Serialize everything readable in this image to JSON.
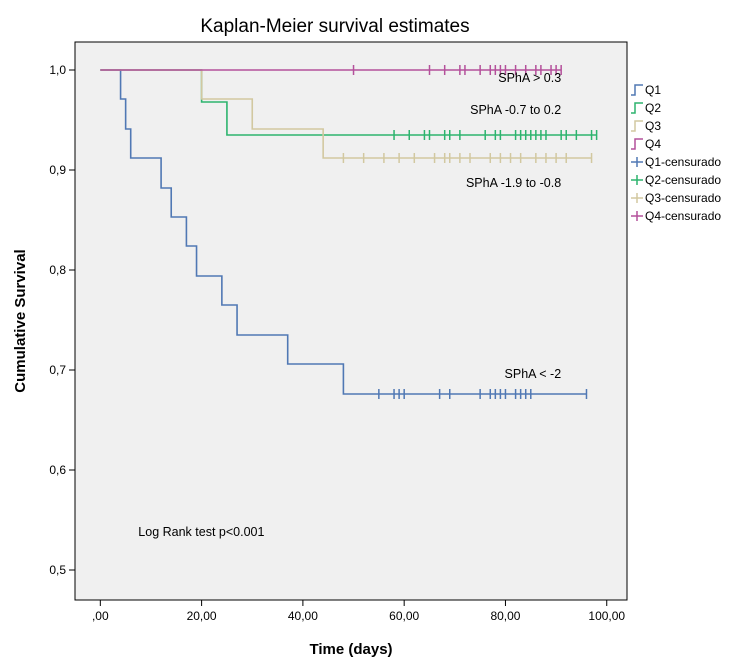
{
  "chart_data": {
    "type": "line",
    "title": "Kaplan-Meier survival estimates",
    "xlabel": "Time (days)",
    "ylabel": "Cumulative Survival",
    "xlim": [
      -5,
      104
    ],
    "ylim": [
      0.47,
      1.028
    ],
    "x_ticks": [
      {
        "value": 0,
        "label": ",00"
      },
      {
        "value": 20,
        "label": "20,00"
      },
      {
        "value": 40,
        "label": "40,00"
      },
      {
        "value": 60,
        "label": "60,00"
      },
      {
        "value": 80,
        "label": "80,00"
      },
      {
        "value": 100,
        "label": "100,00"
      }
    ],
    "y_ticks": [
      {
        "value": 0.5,
        "label": "0,5"
      },
      {
        "value": 0.6,
        "label": "0,6"
      },
      {
        "value": 0.7,
        "label": "0,7"
      },
      {
        "value": 0.8,
        "label": "0,8"
      },
      {
        "value": 0.9,
        "label": "0,9"
      },
      {
        "value": 1.0,
        "label": "1,0"
      }
    ],
    "grid": false,
    "legend_position": "right",
    "legend": [
      {
        "label": "Q1",
        "series": "Q1",
        "kind": "line"
      },
      {
        "label": "Q2",
        "series": "Q2",
        "kind": "line"
      },
      {
        "label": "Q3",
        "series": "Q3",
        "kind": "line"
      },
      {
        "label": "Q4",
        "series": "Q4",
        "kind": "line"
      },
      {
        "label": "Q1-censurado",
        "series": "Q1",
        "kind": "censor"
      },
      {
        "label": "Q2-censurado",
        "series": "Q2",
        "kind": "censor"
      },
      {
        "label": "Q3-censurado",
        "series": "Q3",
        "kind": "censor"
      },
      {
        "label": "Q4-censurado",
        "series": "Q4",
        "kind": "censor"
      }
    ],
    "series": [
      {
        "name": "Q1",
        "color": "#5078b4",
        "steps": [
          [
            0,
            1.0
          ],
          [
            4,
            0.971
          ],
          [
            5,
            0.941
          ],
          [
            6,
            0.912
          ],
          [
            12,
            0.882
          ],
          [
            14,
            0.853
          ],
          [
            17,
            0.824
          ],
          [
            19,
            0.794
          ],
          [
            24,
            0.765
          ],
          [
            27,
            0.735
          ],
          [
            37,
            0.706
          ],
          [
            48,
            0.676
          ]
        ],
        "end": 96,
        "censored": [
          55,
          58,
          59,
          60,
          67,
          69,
          75,
          77,
          78,
          79,
          80,
          82,
          83,
          84,
          85,
          96
        ]
      },
      {
        "name": "Q2",
        "color": "#2db46e",
        "steps": [
          [
            0,
            1.0
          ],
          [
            20,
            0.968
          ],
          [
            25,
            0.935
          ]
        ],
        "end": 98,
        "censored": [
          58,
          61,
          64,
          65,
          68,
          69,
          71,
          76,
          78,
          79,
          82,
          83,
          84,
          85,
          86,
          87,
          88,
          91,
          92,
          94,
          97,
          98
        ]
      },
      {
        "name": "Q3",
        "color": "#d2c8a0",
        "steps": [
          [
            0,
            1.0
          ],
          [
            20,
            0.971
          ],
          [
            30,
            0.941
          ],
          [
            44,
            0.912
          ]
        ],
        "end": 97,
        "censored": [
          48,
          52,
          56,
          59,
          62,
          66,
          68,
          69,
          71,
          73,
          77,
          79,
          81,
          83,
          86,
          88,
          90,
          92,
          97
        ]
      },
      {
        "name": "Q4",
        "color": "#b4509b",
        "steps": [
          [
            0,
            1.0
          ]
        ],
        "end": 91,
        "censored": [
          50,
          65,
          68,
          71,
          72,
          75,
          77,
          78,
          79,
          80,
          82,
          84,
          86,
          87,
          89,
          90,
          91
        ]
      }
    ],
    "annotations": [
      {
        "text": "SPhA > 0.3",
        "x": 91,
        "y": 0.988
      },
      {
        "text": "SPhA -0.7 to 0.2",
        "x": 91,
        "y": 0.956
      },
      {
        "text": "SPhA -1.9 to -0.8",
        "x": 91,
        "y": 0.883
      },
      {
        "text": "SPhA < -2",
        "x": 91,
        "y": 0.692
      },
      {
        "text": "Log Rank test p<0.001",
        "x": 7.5,
        "y": 0.534
      }
    ]
  }
}
